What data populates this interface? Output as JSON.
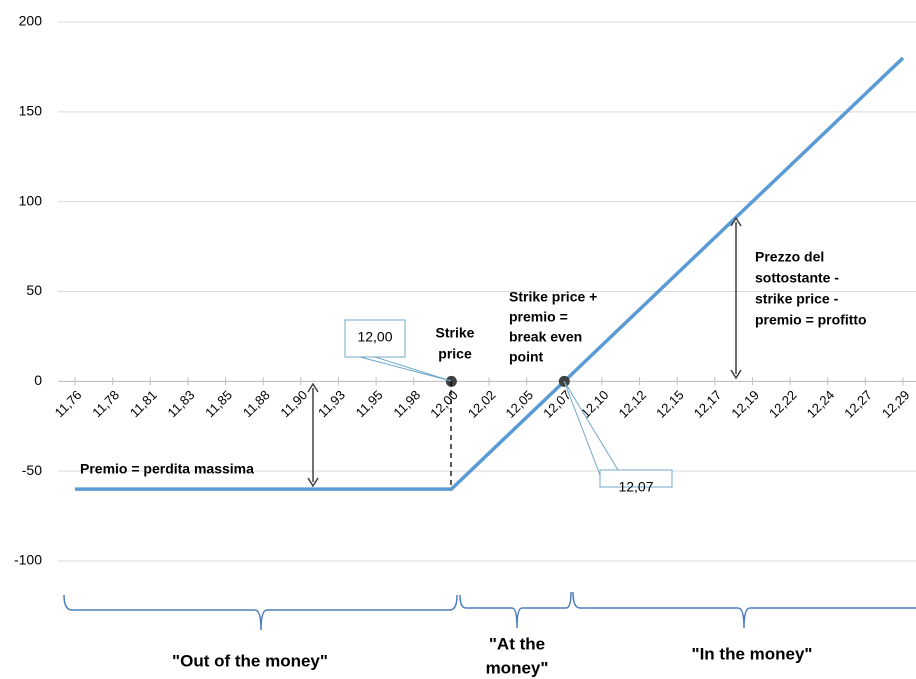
{
  "chart_data": {
    "type": "line",
    "categories": [
      "11,76",
      "11,78",
      "11,81",
      "11,83",
      "11,85",
      "11,88",
      "11,90",
      "11,93",
      "11,95",
      "11,98",
      "12,00",
      "12,02",
      "12,05",
      "12,07",
      "12,10",
      "12,12",
      "12,15",
      "12,17",
      "12,19",
      "12,22",
      "12,24",
      "12,27",
      "12,29"
    ],
    "values": [
      -60,
      -60,
      -60,
      -60,
      -60,
      -60,
      -60,
      -60,
      -60,
      -60,
      -60,
      -40,
      -20,
      0,
      20,
      40,
      60,
      80,
      100,
      120,
      140,
      160,
      180
    ],
    "color": "#5b9bd5",
    "ylim": [
      -100,
      200
    ],
    "yticks": [
      -100,
      -50,
      0,
      50,
      100,
      150,
      200
    ],
    "grid": true,
    "annotations": {
      "premium": "Premio = perdita massima",
      "strike": [
        "Strike",
        "price"
      ],
      "break_even": [
        "Strike price +",
        "premio =",
        "break even",
        "point"
      ],
      "profit": [
        "Prezzo del",
        "sottostante -",
        "strike price -",
        "premio = profitto"
      ],
      "callout_strike": "12,00",
      "callout_break_even": "12,07",
      "otm": "\"Out of the money\"",
      "atm": [
        "\"At the",
        "money\""
      ],
      "itm": "\"In the money\""
    }
  }
}
